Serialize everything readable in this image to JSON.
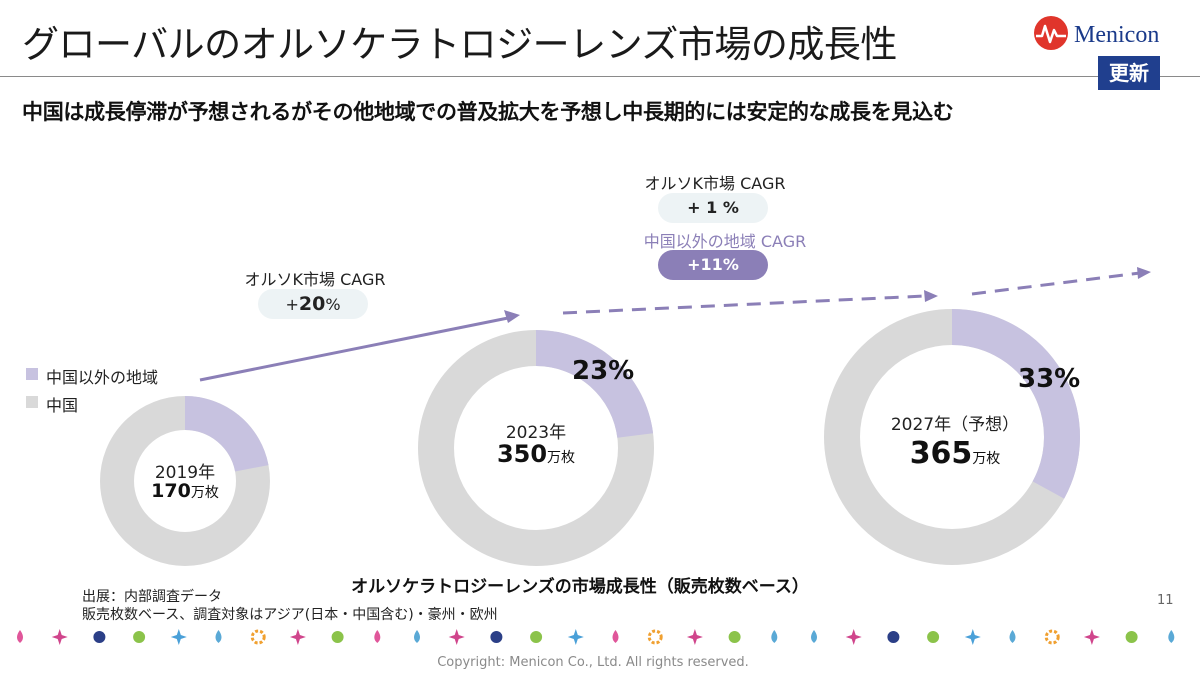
{
  "header": {
    "title": "グローバルのオルソケラトロジーレンズ市場の成長性",
    "badge": "更新",
    "logo_text": "Menicon"
  },
  "subtitle": "中国は成長停滞が予想されるがその他地域での普及拡大を予想し中長期的には安定的な成長を見込む",
  "cagr_1": {
    "label": "オルソK市場 CAGR",
    "value_prefix": "+",
    "value_number": "20",
    "value_suffix": "%"
  },
  "cagr_2": {
    "label": "オルソK市場 CAGR",
    "value": "+ 1 %",
    "label_other": "中国以外の地域 CAGR",
    "value_other": "+11%"
  },
  "legend": [
    {
      "label": "中国以外の地域",
      "color": "#c7c2e0"
    },
    {
      "label": "中国",
      "color": "#d9d9d9"
    }
  ],
  "chart_data": {
    "type": "pie",
    "variant": "donut",
    "title": "オルソケラトロジーレンズの市場成長性（販売枚数ベース）",
    "series_names": [
      "中国以外の地域",
      "中国"
    ],
    "colors": [
      "#c7c2e0",
      "#d9d9d9"
    ],
    "donuts": [
      {
        "year": "2019年",
        "total": 170,
        "total_label": "170",
        "unit": "万枚",
        "other_region_share": 0.22
      },
      {
        "year": "2023年",
        "total": 350,
        "total_label": "350",
        "unit": "万枚",
        "other_region_share": 0.23,
        "pct_label": "23%"
      },
      {
        "year": "2027年（予想）",
        "total": 365,
        "total_label": "365",
        "unit": "万枚",
        "other_region_share": 0.33,
        "pct_label": "33%"
      }
    ]
  },
  "footer": {
    "source_line1": "出展：内部調査データ",
    "source_line2": "販売枚数ベース、調査対象はアジア(日本・中国含む)・豪州・欧州",
    "page_number": "11",
    "copyright": "Copyright: Menicon Co., Ltd. All rights reserved."
  },
  "colors": {
    "accent": "#8b7fb7",
    "other_region": "#c7c2e0",
    "china": "#d9d9d9",
    "badge": "#203f8e",
    "pill_light": "#edf3f5"
  }
}
